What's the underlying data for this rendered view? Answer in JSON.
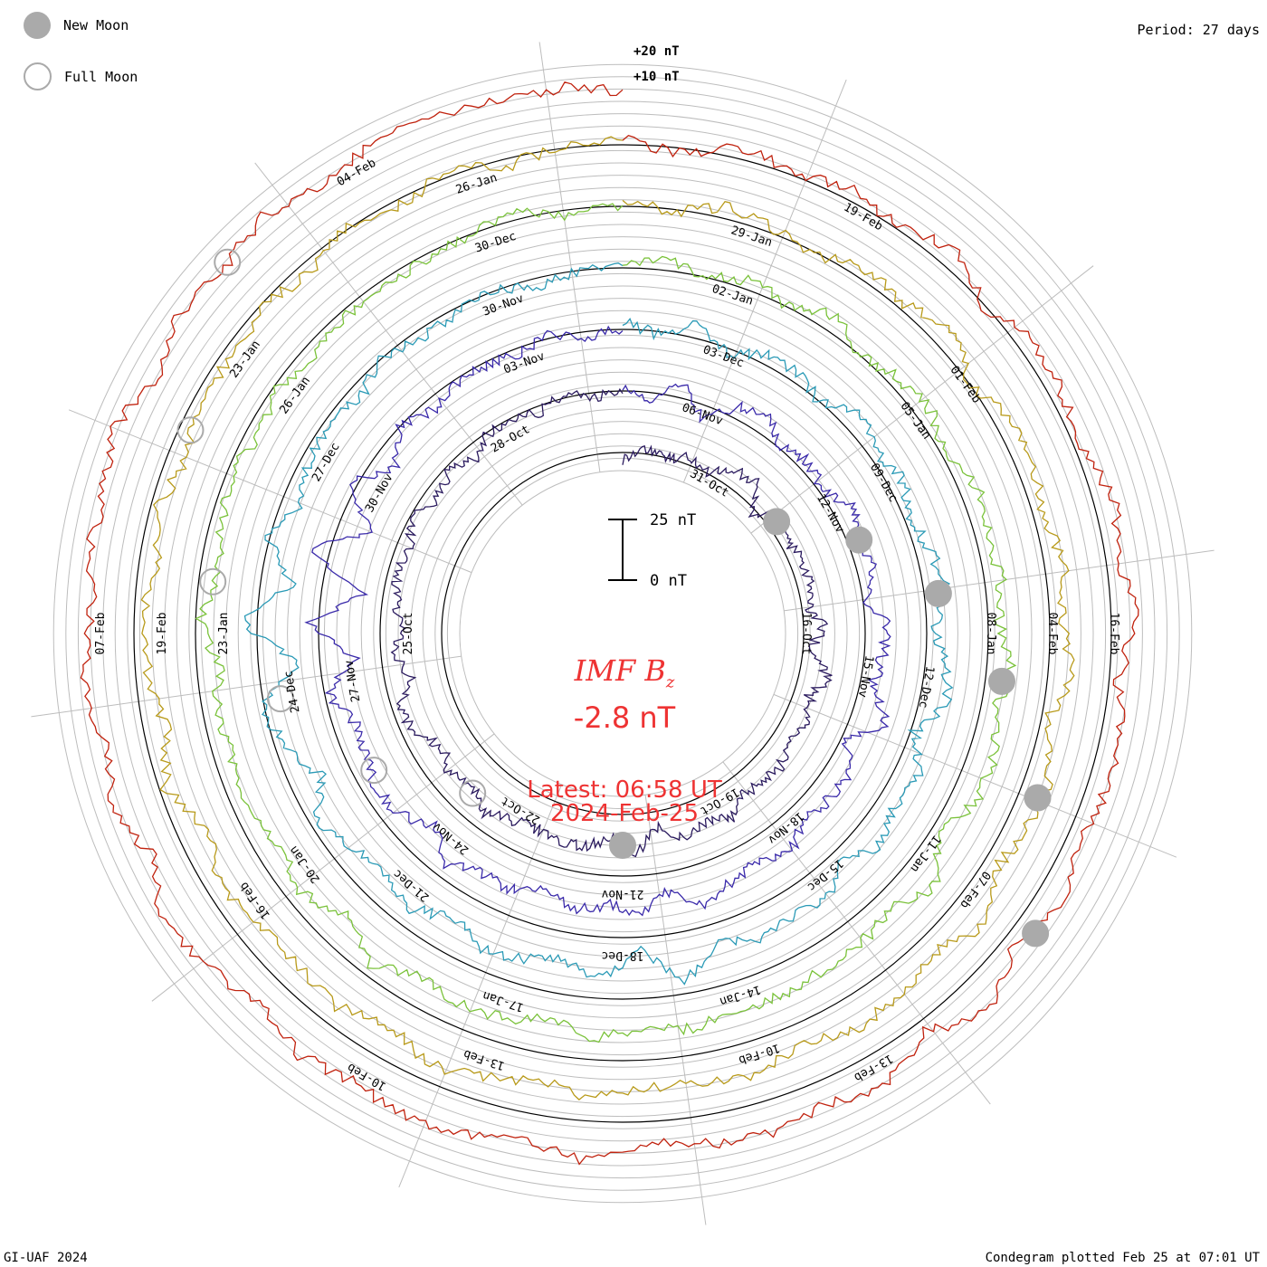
{
  "legend": {
    "new_moon": "New Moon",
    "full_moon": "Full Moon"
  },
  "period_label": "Period: 27 days",
  "credit": "GI-UAF 2024",
  "plotted_label": "Condegram plotted Feb 25 at 07:01 UT",
  "center": {
    "title_main": "IMF B",
    "title_sub": "z",
    "value": "-2.8 nT",
    "latest_time": "Latest: 06:58 UT",
    "latest_date": "2024-Feb-25"
  },
  "chart_data": {
    "type": "line",
    "title": "IMF Bz",
    "subtitle": "Condegram, period 27 days",
    "scale_bar": {
      "top_label": "25 nT",
      "bottom_label": "0 nT",
      "span_nT": 25
    },
    "outer_scale_labels": [
      "+20 nT",
      "+10 nT"
    ],
    "grid": true,
    "colors": {
      "rotation_1": "#2a1a5e",
      "rotation_2": "#3a2aaa",
      "rotation_3": "#2a9ab6",
      "rotation_4": "#7ac23a",
      "rotation_5": "#b89a1a",
      "rotation_6": "#c0220e",
      "moon": "#aaaaaa",
      "center_text": "#ee3333"
    },
    "rotations": [
      {
        "start_date": "2023-10-04",
        "color": "#2a1a5e",
        "tick_labels": [
          "31-Oct",
          "16-Oct",
          "19-Oct",
          "22-Oct",
          "25-Oct",
          "28-Oct"
        ],
        "new_moons": [
          "2023-10-14",
          "2023-11-13"
        ],
        "full_moons": [
          "2023-10-28"
        ],
        "bz": [
          -3,
          2,
          -1,
          1,
          -2,
          4,
          6,
          -5,
          3,
          -2,
          1,
          0,
          -3,
          2,
          -4,
          5,
          -1,
          2,
          -3,
          1,
          0,
          -2,
          3,
          -1,
          2,
          -6,
          4,
          -3,
          1,
          2,
          -1,
          0,
          3,
          -2,
          1,
          -4,
          2,
          5,
          -3,
          1,
          -2,
          0,
          2,
          -1,
          3,
          -2,
          1,
          -3,
          2,
          0,
          -1,
          2,
          -2,
          1
        ]
      },
      {
        "start_date": "2023-10-31",
        "color": "#3a2aaa",
        "tick_labels": [
          "06-Nov",
          "12-Nov",
          "15-Nov",
          "18-Nov",
          "21-Nov",
          "24-Nov",
          "27-Nov",
          "30-Nov",
          "03-Nov"
        ],
        "new_moons": [
          "2023-11-13"
        ],
        "full_moons": [
          "2023-11-27"
        ],
        "bz": [
          2,
          -4,
          6,
          -8,
          3,
          5,
          -2,
          1,
          -3,
          4,
          -1,
          2,
          -5,
          3,
          1,
          -2,
          7,
          -6,
          2,
          0,
          -3,
          4,
          -2,
          1,
          5,
          -4,
          3,
          -1,
          2,
          -3,
          1,
          0,
          4,
          -5,
          2,
          3,
          -1,
          -2,
          6,
          -8,
          10,
          -12,
          14,
          -10,
          8,
          -6,
          3,
          -2,
          1,
          0,
          -1,
          2,
          -3,
          1
        ]
      },
      {
        "start_date": "2023-11-27",
        "color": "#2a9ab6",
        "tick_labels": [
          "03-Dec",
          "09-Dec",
          "12-Dec",
          "15-Dec",
          "18-Dec",
          "21-Dec",
          "24-Dec",
          "27-Dec",
          "30-Nov"
        ],
        "new_moons": [
          "2023-12-12"
        ],
        "full_moons": [
          "2023-12-27"
        ],
        "bz": [
          3,
          -2,
          5,
          -4,
          2,
          1,
          -3,
          6,
          -1,
          2,
          -2,
          0,
          4,
          -3,
          1,
          5,
          -6,
          2,
          -1,
          3,
          -4,
          2,
          0,
          1,
          -3,
          8,
          -7,
          5,
          -2,
          1,
          3,
          -4,
          2,
          -1,
          0,
          6,
          -5,
          3,
          9,
          -10,
          12,
          -8,
          6,
          -4,
          2,
          1,
          -2,
          3,
          -1,
          0,
          2,
          -3,
          1,
          2
        ]
      },
      {
        "start_date": "2023-12-24",
        "color": "#7ac23a",
        "tick_labels": [
          "02-Jan",
          "05-Jan",
          "08-Jan",
          "11-Jan",
          "14-Jan",
          "17-Jan",
          "20-Jan",
          "23-Jan",
          "26-Jan",
          "30-Dec"
        ],
        "new_moons": [
          "2024-01-11"
        ],
        "full_moons": [
          "2024-01-25"
        ],
        "bz": [
          2,
          4,
          -1,
          3,
          -2,
          5,
          -3,
          1,
          2,
          -4,
          3,
          0,
          1,
          -2,
          4,
          -1,
          3,
          2,
          -5,
          6,
          -3,
          1,
          0,
          2,
          -1,
          3,
          -2,
          4,
          -3,
          1,
          2,
          -1,
          5,
          -4,
          3,
          -2,
          1,
          0,
          2,
          -3,
          4,
          -2,
          1,
          3,
          -1,
          2,
          -2,
          0,
          1,
          -1,
          2,
          3,
          -2,
          1
        ]
      },
      {
        "start_date": "2024-01-20",
        "color": "#b89a1a",
        "tick_labels": [
          "29-Jan",
          "01-Feb",
          "04-Feb",
          "07-Feb",
          "10-Feb",
          "13-Feb",
          "16-Feb",
          "19-Feb",
          "23-Jan",
          "26-Jan"
        ],
        "new_moons": [
          "2024-02-09"
        ],
        "full_moons": [
          "2024-01-25"
        ],
        "bz": [
          3,
          -2,
          4,
          1,
          -3,
          2,
          0,
          5,
          -4,
          2,
          1,
          -1,
          3,
          -2,
          4,
          -5,
          2,
          1,
          -3,
          6,
          -2,
          1,
          3,
          -4,
          2,
          0,
          -1,
          3,
          -2,
          1,
          4,
          -3,
          2,
          -1,
          0,
          2,
          -4,
          5,
          -2,
          1,
          3,
          -1,
          2,
          -3,
          1,
          0,
          2,
          -2,
          3,
          -1,
          4,
          -2,
          1,
          2
        ]
      },
      {
        "start_date": "2024-02-16",
        "color": "#c0220e",
        "tick_labels": [
          "19-Feb",
          "16-Feb",
          "13-Feb",
          "10-Feb",
          "07-Feb",
          "04-Feb"
        ],
        "new_moons": [
          "2024-02-09"
        ],
        "full_moons": [
          "2024-02-24"
        ],
        "bz": [
          2,
          -3,
          4,
          -1,
          3,
          -2,
          5,
          -4,
          2,
          1,
          -2,
          3,
          -1,
          4,
          -3,
          2,
          0,
          -2,
          3,
          -4,
          6,
          -5,
          3,
          -1,
          2,
          0,
          -3,
          4,
          -2,
          1,
          3,
          -1,
          2,
          -3,
          1,
          5,
          -4,
          2,
          -1,
          3,
          -2,
          1,
          0,
          4,
          -3,
          2,
          -1,
          3,
          -2,
          1,
          2,
          -1,
          0,
          -3
        ]
      }
    ],
    "latest_value_nT": -2.8,
    "latest_time": "06:58 UT",
    "latest_date": "2024-Feb-25"
  }
}
